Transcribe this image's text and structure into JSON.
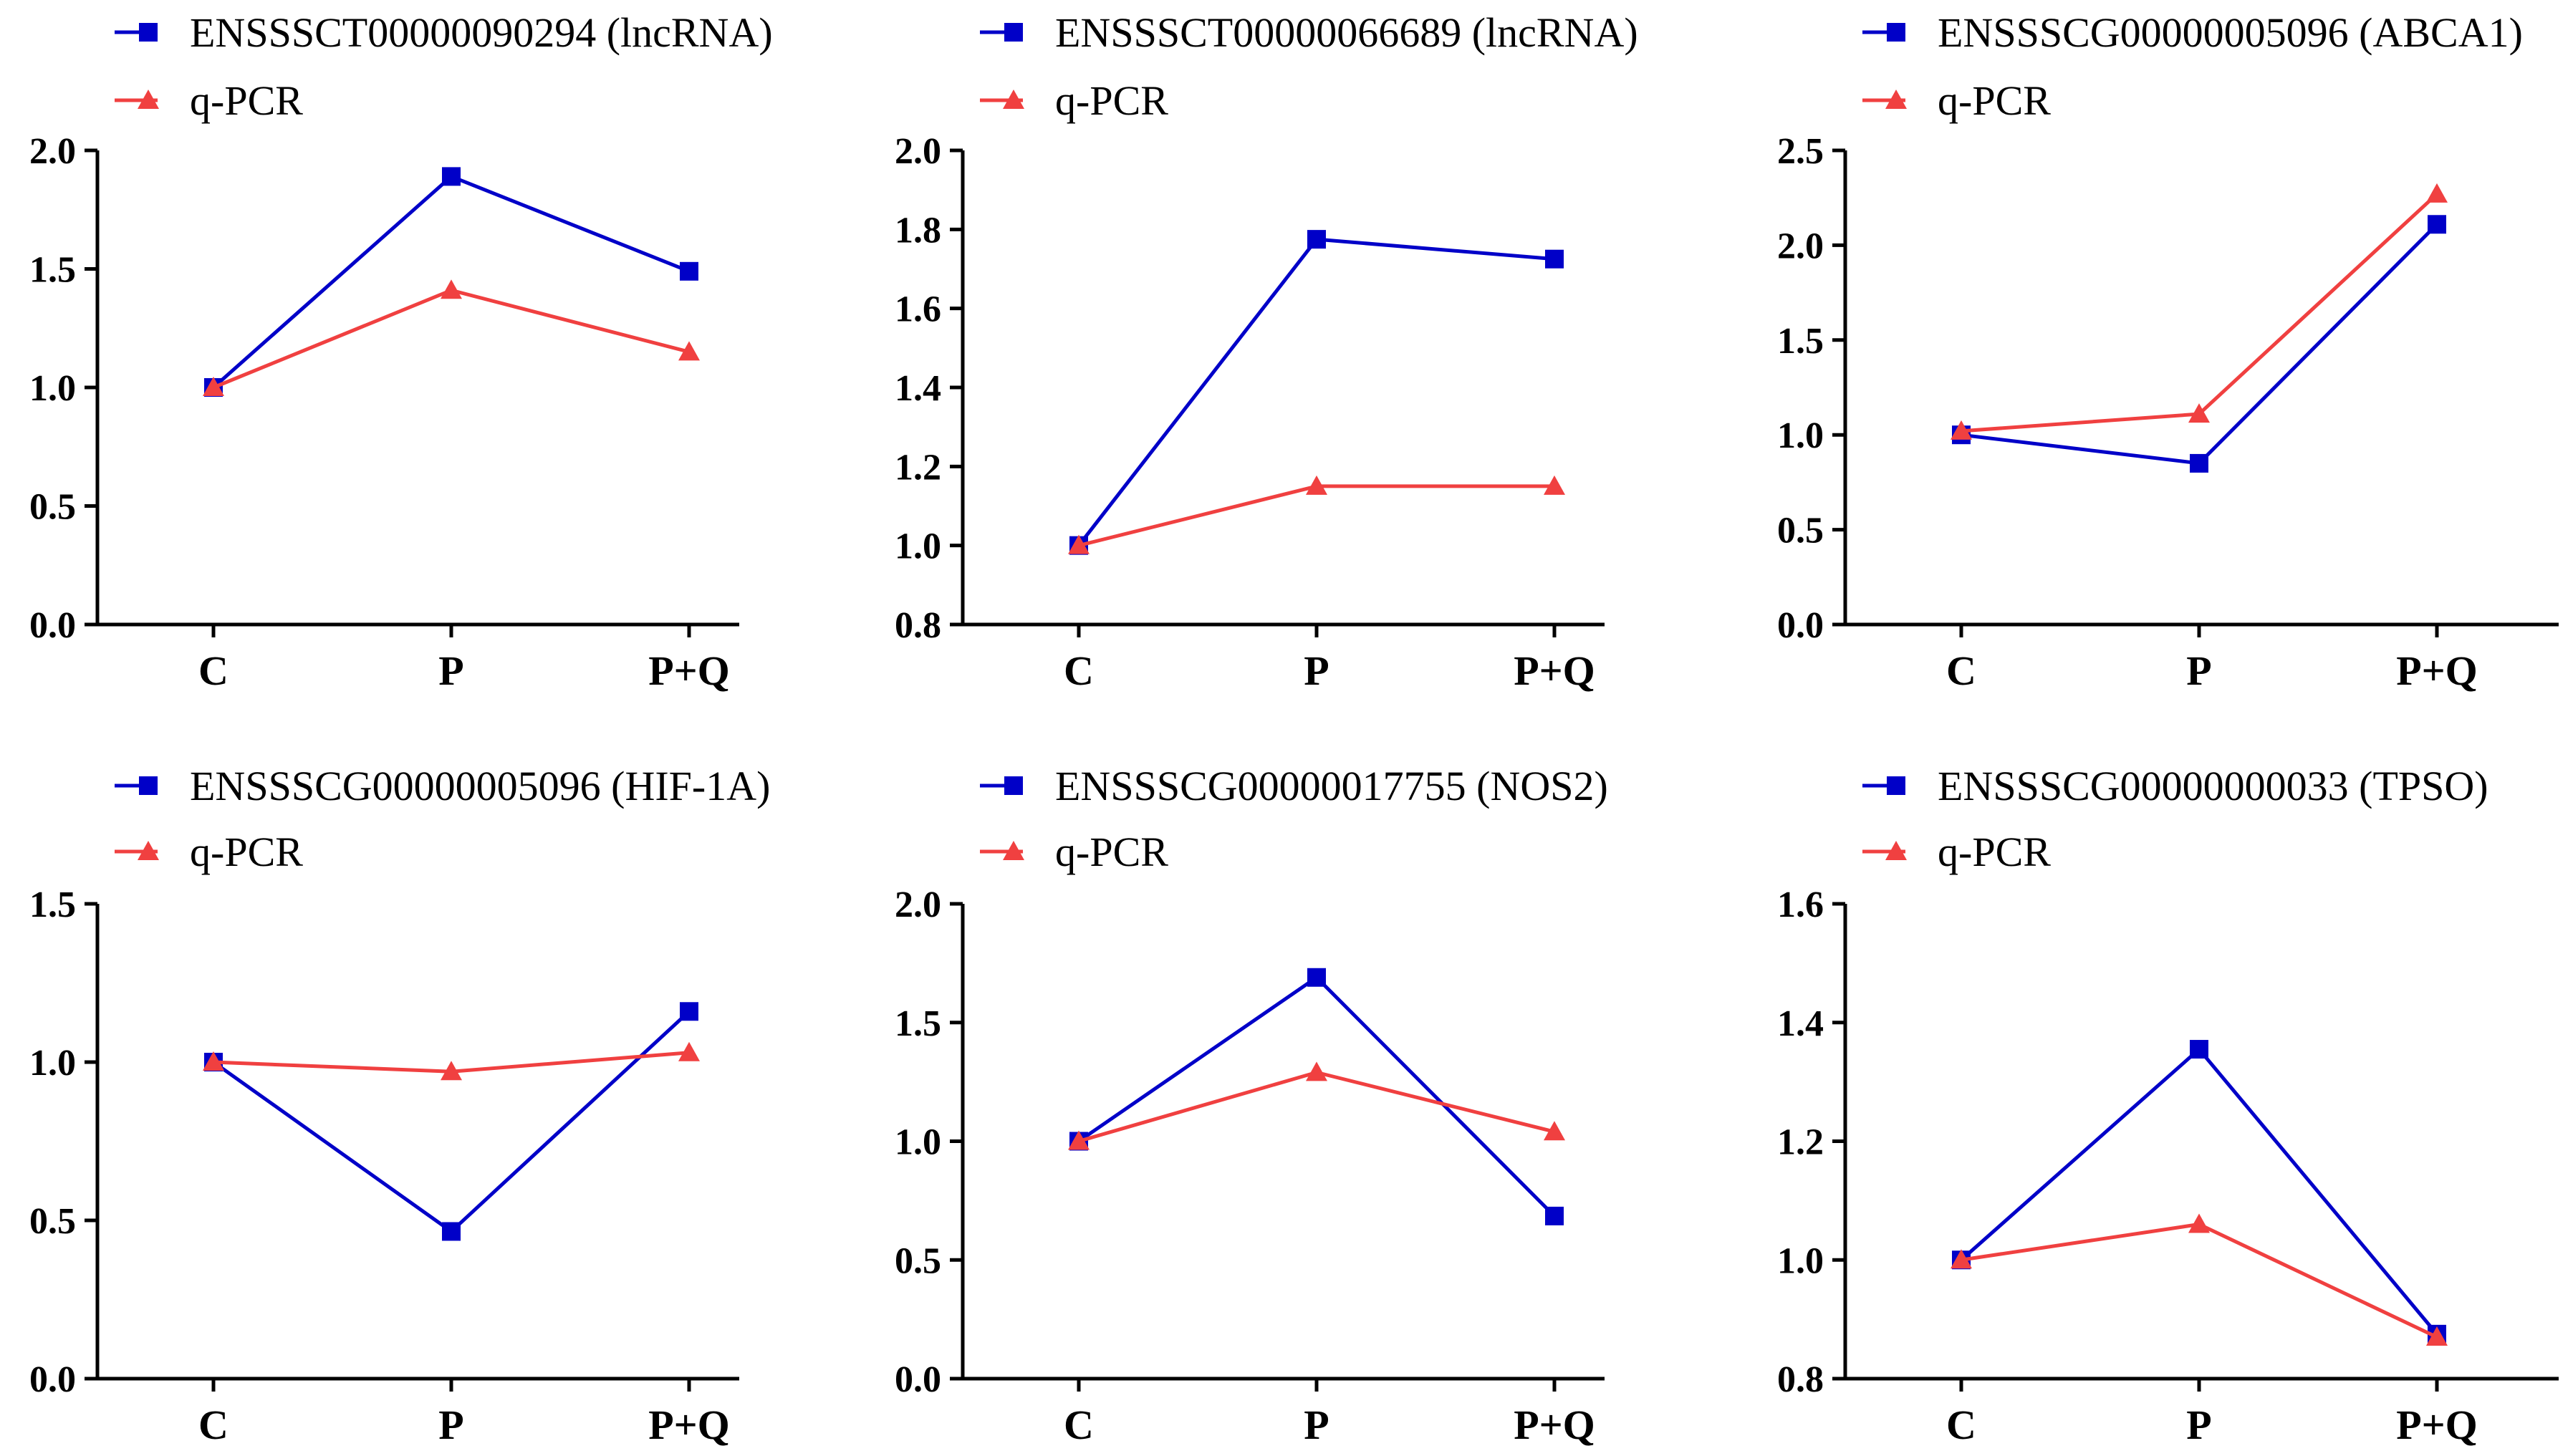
{
  "colors": {
    "array": "#0000c8",
    "qpcr": "#f04040",
    "axis": "#000000"
  },
  "chart_data": [
    {
      "type": "line",
      "categories": [
        "C",
        "P",
        "P+Q"
      ],
      "ylim": [
        0.0,
        2.0
      ],
      "yticks": [
        "0.0",
        "0.5",
        "1.0",
        "1.5",
        "2.0"
      ],
      "series": [
        {
          "name": "ENSSSCT00000090294 (lncRNA)",
          "marker": "square",
          "values": [
            1.0,
            1.89,
            1.49
          ]
        },
        {
          "name": "q-PCR",
          "marker": "triangle",
          "values": [
            1.0,
            1.41,
            1.15
          ]
        }
      ]
    },
    {
      "type": "line",
      "categories": [
        "C",
        "P",
        "P+Q"
      ],
      "ylim": [
        0.8,
        2.0
      ],
      "yticks": [
        "0.8",
        "1.0",
        "1.2",
        "1.4",
        "1.6",
        "1.8",
        "2.0"
      ],
      "series": [
        {
          "name": "ENSSSCT00000066689 (lncRNA)",
          "marker": "square",
          "values": [
            1.0,
            1.775,
            1.725
          ]
        },
        {
          "name": "q-PCR",
          "marker": "triangle",
          "values": [
            1.0,
            1.15,
            1.15
          ]
        }
      ]
    },
    {
      "type": "line",
      "categories": [
        "C",
        "P",
        "P+Q"
      ],
      "ylim": [
        0.0,
        2.5
      ],
      "yticks": [
        "0.0",
        "0.5",
        "1.0",
        "1.5",
        "2.0",
        "2.5"
      ],
      "series": [
        {
          "name": "ENSSSCG00000005096 (ABCA1)",
          "marker": "square",
          "values": [
            1.0,
            0.85,
            2.11
          ]
        },
        {
          "name": "q-PCR",
          "marker": "triangle",
          "values": [
            1.02,
            1.11,
            2.27
          ]
        }
      ]
    },
    {
      "type": "line",
      "categories": [
        "C",
        "P",
        "P+Q"
      ],
      "ylim": [
        0.0,
        1.5
      ],
      "yticks": [
        "0.0",
        "0.5",
        "1.0",
        "1.5"
      ],
      "series": [
        {
          "name": "ENSSSCG00000005096 (HIF-1A)",
          "marker": "square",
          "values": [
            1.0,
            0.465,
            1.16
          ]
        },
        {
          "name": "q-PCR",
          "marker": "triangle",
          "values": [
            1.0,
            0.97,
            1.03
          ]
        }
      ]
    },
    {
      "type": "line",
      "categories": [
        "C",
        "P",
        "P+Q"
      ],
      "ylim": [
        0.0,
        2.0
      ],
      "yticks": [
        "0.0",
        "0.5",
        "1.0",
        "1.5",
        "2.0"
      ],
      "series": [
        {
          "name": "ENSSSCG00000017755 (NOS2)",
          "marker": "square",
          "values": [
            1.0,
            1.69,
            0.685
          ]
        },
        {
          "name": "q-PCR",
          "marker": "triangle",
          "values": [
            1.0,
            1.29,
            1.04
          ]
        }
      ]
    },
    {
      "type": "line",
      "categories": [
        "C",
        "P",
        "P+Q"
      ],
      "ylim": [
        0.8,
        1.6
      ],
      "yticks": [
        "0.8",
        "1.0",
        "1.2",
        "1.4",
        "1.6"
      ],
      "series": [
        {
          "name": "ENSSSCG00000000033 (TPSO)",
          "marker": "square",
          "values": [
            1.0,
            1.355,
            0.875
          ]
        },
        {
          "name": "q-PCR",
          "marker": "triangle",
          "values": [
            1.0,
            1.06,
            0.87
          ]
        }
      ]
    }
  ]
}
